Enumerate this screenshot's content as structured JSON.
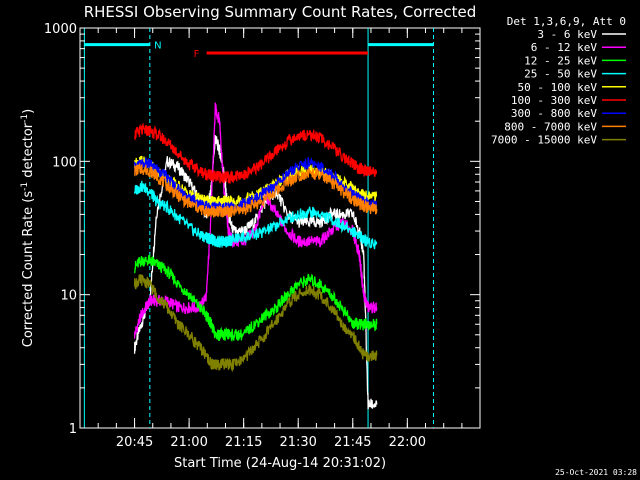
{
  "chart_data": {
    "type": "line",
    "title": "RHESSI Observing Summary Count Rates, Corrected",
    "xlabel": "Start Time (24-Aug-14 20:31:02)",
    "ylabel_parts": [
      "Corrected Count Rate (s",
      "-1",
      " detector",
      "-1",
      ")"
    ],
    "ylog": true,
    "ylim": [
      1,
      1000
    ],
    "xlim": [
      20.5,
      22.333
    ],
    "x_ticks": [
      {
        "v": 20.75,
        "label": "20:45"
      },
      {
        "v": 21.0,
        "label": "21:00"
      },
      {
        "v": 21.25,
        "label": "21:15"
      },
      {
        "v": 21.5,
        "label": "21:30"
      },
      {
        "v": 21.75,
        "label": "21:45"
      },
      {
        "v": 22.0,
        "label": "22:00"
      }
    ],
    "y_ticks": [
      {
        "v": 1,
        "label": "1"
      },
      {
        "v": 10,
        "label": "10"
      },
      {
        "v": 100,
        "label": "100"
      },
      {
        "v": 1000,
        "label": "1000"
      }
    ],
    "legend_title": "Det 1,3,6,9, Att 0",
    "flags": [
      {
        "label": "N",
        "color": "#00ffff",
        "x_start": 20.52,
        "x_end": 20.82,
        "y": 750
      },
      {
        "label": "F",
        "color": "#ff0000",
        "x_start": 21.08,
        "x_end": 21.82,
        "y": 650
      },
      {
        "label": "",
        "color": "#00ffff",
        "x_start": 21.82,
        "x_end": 22.12,
        "y": 750
      }
    ],
    "vlines": [
      {
        "x": 20.52,
        "color": "#00ffff",
        "style": "solid"
      },
      {
        "x": 20.82,
        "color": "#00ffff",
        "style": "dashed"
      },
      {
        "x": 21.82,
        "color": "#00ffff",
        "style": "solid"
      },
      {
        "x": 22.12,
        "color": "#00ffff",
        "style": "dashed"
      }
    ],
    "series": [
      {
        "name": "3 - 6 keV",
        "color": "#ffffff",
        "x": [
          20.75,
          20.78,
          20.82,
          20.85,
          20.9,
          20.95,
          21.0,
          21.05,
          21.08,
          21.1,
          21.12,
          21.14,
          21.16,
          21.18,
          21.2,
          21.25,
          21.3,
          21.35,
          21.4,
          21.45,
          21.5,
          21.55,
          21.6,
          21.65,
          21.7,
          21.75,
          21.78,
          21.8,
          21.82,
          21.86
        ],
        "y": [
          4,
          6,
          9,
          40,
          100,
          90,
          70,
          50,
          40,
          60,
          150,
          120,
          80,
          40,
          30,
          30,
          35,
          50,
          60,
          40,
          35,
          35,
          35,
          40,
          40,
          40,
          30,
          20,
          1.5,
          1.5
        ]
      },
      {
        "name": "6 - 12 keV",
        "color": "#ff00ff",
        "x": [
          20.75,
          20.78,
          20.82,
          20.85,
          20.9,
          20.95,
          21.0,
          21.05,
          21.08,
          21.1,
          21.12,
          21.14,
          21.16,
          21.18,
          21.2,
          21.25,
          21.3,
          21.35,
          21.4,
          21.45,
          21.5,
          21.55,
          21.6,
          21.65,
          21.7,
          21.75,
          21.78,
          21.8,
          21.82,
          21.86
        ],
        "y": [
          5,
          7,
          9,
          9,
          9,
          8,
          8,
          8,
          10,
          40,
          250,
          200,
          60,
          30,
          25,
          25,
          30,
          55,
          40,
          30,
          25,
          25,
          25,
          30,
          35,
          30,
          20,
          10,
          8,
          8
        ]
      },
      {
        "name": "12 - 25 keV",
        "color": "#00ff00",
        "x": [
          20.75,
          20.78,
          20.82,
          20.85,
          20.9,
          20.95,
          21.0,
          21.05,
          21.08,
          21.1,
          21.12,
          21.14,
          21.16,
          21.18,
          21.2,
          21.25,
          21.3,
          21.35,
          21.4,
          21.45,
          21.5,
          21.55,
          21.6,
          21.65,
          21.7,
          21.75,
          21.78,
          21.8,
          21.82,
          21.86
        ],
        "y": [
          16,
          18,
          18,
          17,
          15,
          12,
          10,
          8,
          7,
          6,
          5,
          5,
          5,
          5,
          5,
          5,
          6,
          7,
          8,
          10,
          12,
          13,
          12,
          10,
          8,
          6,
          6,
          6,
          6,
          6
        ]
      },
      {
        "name": "25 - 50 keV",
        "color": "#00ffff",
        "x": [
          20.75,
          20.78,
          20.82,
          20.85,
          20.9,
          20.95,
          21.0,
          21.05,
          21.08,
          21.1,
          21.12,
          21.14,
          21.16,
          21.18,
          21.2,
          21.25,
          21.3,
          21.35,
          21.4,
          21.45,
          21.5,
          21.55,
          21.6,
          21.65,
          21.7,
          21.75,
          21.78,
          21.8,
          21.82,
          21.86
        ],
        "y": [
          60,
          65,
          60,
          50,
          45,
          38,
          32,
          28,
          27,
          26,
          25,
          25,
          25,
          25,
          26,
          27,
          28,
          30,
          33,
          37,
          40,
          42,
          40,
          37,
          33,
          30,
          28,
          26,
          25,
          24
        ]
      },
      {
        "name": "50 - 100 keV",
        "color": "#ffff00",
        "x": [
          20.75,
          20.78,
          20.82,
          20.85,
          20.9,
          20.95,
          21.0,
          21.05,
          21.08,
          21.1,
          21.12,
          21.14,
          21.16,
          21.18,
          21.2,
          21.25,
          21.3,
          21.35,
          21.4,
          21.45,
          21.5,
          21.55,
          21.6,
          21.65,
          21.7,
          21.75,
          21.78,
          21.8,
          21.82,
          21.86
        ],
        "y": [
          95,
          100,
          95,
          85,
          75,
          65,
          57,
          52,
          50,
          50,
          50,
          50,
          50,
          50,
          50,
          52,
          55,
          60,
          68,
          78,
          85,
          88,
          85,
          78,
          70,
          62,
          58,
          55,
          55,
          55
        ]
      },
      {
        "name": "100 - 300 keV",
        "color": "#ff0000",
        "x": [
          20.75,
          20.78,
          20.82,
          20.85,
          20.9,
          20.95,
          21.0,
          21.05,
          21.08,
          21.1,
          21.12,
          21.14,
          21.16,
          21.18,
          21.2,
          21.25,
          21.3,
          21.35,
          21.4,
          21.45,
          21.5,
          21.55,
          21.6,
          21.65,
          21.7,
          21.75,
          21.78,
          21.8,
          21.82,
          21.86
        ],
        "y": [
          160,
          170,
          170,
          160,
          140,
          115,
          95,
          85,
          80,
          78,
          77,
          76,
          76,
          76,
          77,
          80,
          88,
          100,
          120,
          140,
          155,
          160,
          150,
          130,
          110,
          95,
          88,
          85,
          84,
          84
        ]
      },
      {
        "name": "300 - 800 keV",
        "color": "#0000ff",
        "x": [
          20.75,
          20.78,
          20.82,
          20.85,
          20.9,
          20.95,
          21.0,
          21.05,
          21.08,
          21.1,
          21.12,
          21.14,
          21.16,
          21.18,
          21.2,
          21.25,
          21.3,
          21.35,
          21.4,
          21.45,
          21.5,
          21.55,
          21.6,
          21.65,
          21.7,
          21.75,
          21.78,
          21.8,
          21.82,
          21.86
        ],
        "y": [
          90,
          95,
          95,
          88,
          75,
          62,
          53,
          48,
          46,
          45,
          45,
          45,
          45,
          45,
          46,
          48,
          52,
          58,
          68,
          80,
          92,
          97,
          92,
          80,
          68,
          57,
          52,
          50,
          48,
          47
        ]
      },
      {
        "name": "800 - 7000 keV",
        "color": "#ff8000",
        "x": [
          20.75,
          20.78,
          20.82,
          20.85,
          20.9,
          20.95,
          21.0,
          21.05,
          21.08,
          21.1,
          21.12,
          21.14,
          21.16,
          21.18,
          21.2,
          21.25,
          21.3,
          21.35,
          21.4,
          21.45,
          21.5,
          21.55,
          21.6,
          21.65,
          21.7,
          21.75,
          21.78,
          21.8,
          21.82,
          21.86
        ],
        "y": [
          85,
          88,
          85,
          78,
          66,
          55,
          48,
          44,
          42,
          42,
          42,
          42,
          42,
          42,
          42,
          44,
          47,
          52,
          60,
          70,
          78,
          82,
          78,
          70,
          60,
          52,
          48,
          46,
          45,
          44
        ]
      },
      {
        "name": "7000 - 15000 keV",
        "color": "#808000",
        "x": [
          20.75,
          20.78,
          20.82,
          20.85,
          20.9,
          20.95,
          21.0,
          21.05,
          21.08,
          21.1,
          21.12,
          21.14,
          21.16,
          21.18,
          21.2,
          21.25,
          21.3,
          21.35,
          21.4,
          21.45,
          21.5,
          21.55,
          21.6,
          21.65,
          21.7,
          21.75,
          21.78,
          21.8,
          21.82,
          21.86
        ],
        "y": [
          12,
          13,
          12,
          10,
          8,
          6,
          5,
          4,
          3.5,
          3,
          3,
          3,
          3,
          3,
          3,
          3.3,
          4,
          5,
          6.5,
          8.5,
          10,
          11,
          10,
          8,
          6,
          5,
          4,
          3.5,
          3.5,
          3.5
        ]
      }
    ]
  },
  "footer": {
    "timestamp": "25-Oct-2021 03:28"
  }
}
